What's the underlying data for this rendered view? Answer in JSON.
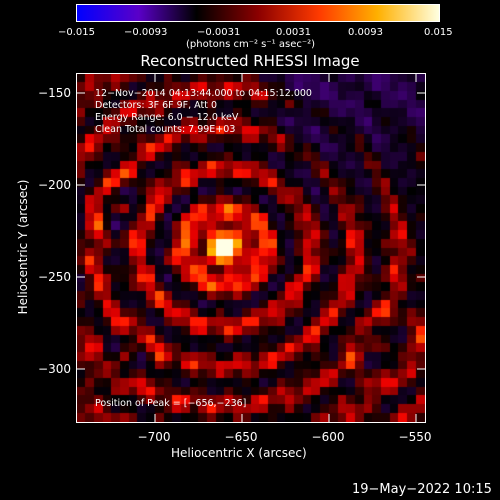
{
  "colorbar": {
    "ticks": [
      "−0.015",
      "−0.0093",
      "−0.0031",
      "0.0031",
      "0.0093",
      "0.015"
    ],
    "units": "(photons cm⁻² s⁻¹ asec⁻²)",
    "colors": [
      "#0000ff",
      "#5a00c8",
      "#000000",
      "#8b0000",
      "#ff3b00",
      "#ffb000",
      "#ffffe0"
    ]
  },
  "plot": {
    "title": "Reconstructed RHESSI Image",
    "xlabel": "Heliocentric X (arcsec)",
    "ylabel": "Heliocentric Y (arcsec)",
    "xticks": [
      "−700",
      "−650",
      "−600",
      "−550"
    ],
    "yticks": [
      "−150",
      "−200",
      "−250",
      "−300"
    ],
    "info_lines": [
      "12−Nov−2014 04:13:44.000 to 04:15:12.000",
      "Detectors: 3F 6F 9F, Att 0",
      "Energy Range: 6.0 − 12.0 keV",
      "Clean    Total counts: 7.99E+03"
    ],
    "peak_label": "Position of Peak = [−656,−236]"
  },
  "footer": {
    "datestamp": "19−May−2022 10:15"
  }
}
